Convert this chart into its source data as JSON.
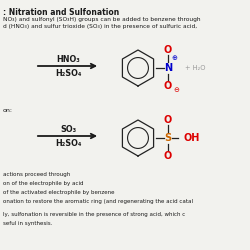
{
  "title": ": Nitration and Sulfonation",
  "line1": "NO₃) and sulfonyl (SO₃H) groups can be added to benzene through",
  "line2": "d (HNO₃) and sulfur trioxide (SO₃) in the presence of sulfuric acid,",
  "nitration_reagent1": "HNO₃",
  "nitration_reagent2": "H₂SO₄",
  "sulfonation_label": "on:",
  "sulfonation_reagent1": "SO₃",
  "sulfonation_reagent2": "H₂SO₄",
  "nitration_byproduct": "+ H₂O",
  "footer_lines": [
    "actions proceed through",
    "on of the electrophile by acid",
    "of the activated electrophile by benzene",
    "onation to restore the aromatic ring (and regenerating the acid catal"
  ],
  "footer2_lines": [
    "ly, sulfonation is reversible in the presence of strong acid, which c",
    "seful in synthesis."
  ],
  "bg_color": "#f2f2ee",
  "text_color": "#1a1a1a",
  "arrow_color": "#1a1a1a",
  "red_color": "#dd0000",
  "blue_color": "#0000cc",
  "orange_color": "#cc6600",
  "gray_color": "#999999"
}
